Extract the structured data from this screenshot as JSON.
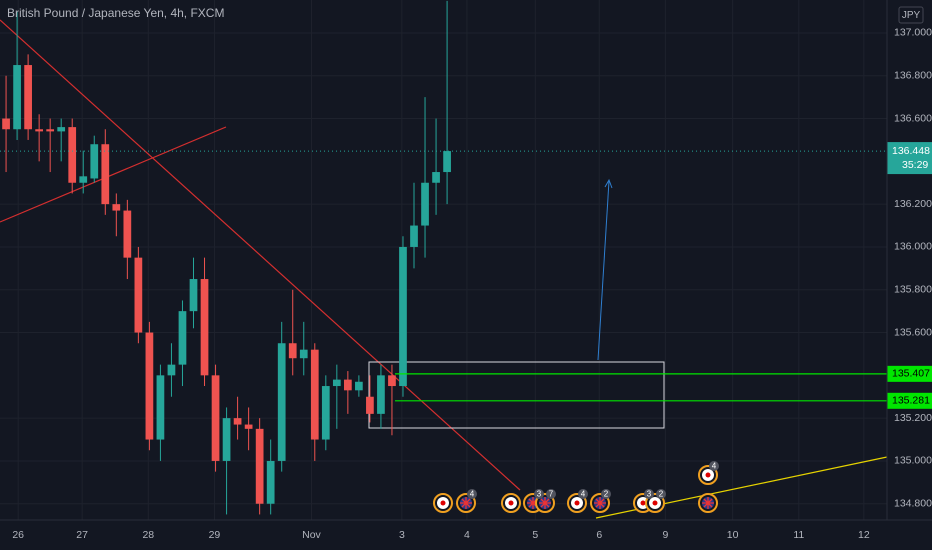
{
  "chart_data": {
    "type": "candlestick",
    "title": "British Pound / Japanese Yen, 4h, FXCM",
    "currency": "JPY",
    "up_color": "#26a69a",
    "down_color": "#ef5350",
    "x": [
      0,
      1,
      2,
      3,
      4,
      5,
      6,
      7,
      8,
      9,
      10,
      11,
      12,
      13,
      14,
      15,
      16,
      17,
      18,
      19,
      20,
      21,
      22,
      23,
      24,
      25,
      26,
      27,
      28,
      29,
      30,
      31,
      32,
      33,
      34,
      35,
      36,
      37,
      38,
      39,
      40
    ],
    "open": [
      136.6,
      136.55,
      136.85,
      136.55,
      136.55,
      136.54,
      136.56,
      136.3,
      136.32,
      136.48,
      136.2,
      136.17,
      135.95,
      135.6,
      135.1,
      135.4,
      135.45,
      135.7,
      135.85,
      135.4,
      135.0,
      135.2,
      135.17,
      135.15,
      134.8,
      135.0,
      135.55,
      135.48,
      135.52,
      135.1,
      135.35,
      135.38,
      135.33,
      135.3,
      135.22,
      135.4,
      135.35,
      136.0,
      136.1,
      136.3,
      136.35
    ],
    "high": [
      136.8,
      137.1,
      136.9,
      136.62,
      136.6,
      136.6,
      136.6,
      136.45,
      136.52,
      136.55,
      136.25,
      136.22,
      136.0,
      135.65,
      135.45,
      135.55,
      135.75,
      135.95,
      135.95,
      135.45,
      135.25,
      135.3,
      135.25,
      135.2,
      135.1,
      135.65,
      135.8,
      135.65,
      135.55,
      135.4,
      135.45,
      135.42,
      135.4,
      135.4,
      135.45,
      135.45,
      136.05,
      136.3,
      136.7,
      136.6,
      137.15
    ],
    "low": [
      136.35,
      136.5,
      136.5,
      136.4,
      136.35,
      136.4,
      136.25,
      136.25,
      136.3,
      136.15,
      136.05,
      135.85,
      135.55,
      135.05,
      135.0,
      135.3,
      135.35,
      135.62,
      135.35,
      134.95,
      134.75,
      135.1,
      135.05,
      134.75,
      134.75,
      134.95,
      135.4,
      135.4,
      135.0,
      135.05,
      135.15,
      135.22,
      135.3,
      135.18,
      135.15,
      135.12,
      135.3,
      135.9,
      135.95,
      136.15,
      136.2
    ],
    "close": [
      136.55,
      136.85,
      136.55,
      136.54,
      136.54,
      136.56,
      136.3,
      136.33,
      136.48,
      136.2,
      136.17,
      135.95,
      135.6,
      135.1,
      135.4,
      135.45,
      135.7,
      135.85,
      135.4,
      135.0,
      135.2,
      135.17,
      135.15,
      134.8,
      135.0,
      135.55,
      135.48,
      135.52,
      135.1,
      135.35,
      135.38,
      135.33,
      135.37,
      135.22,
      135.4,
      135.35,
      136.0,
      136.1,
      136.3,
      136.35,
      136.448
    ],
    "xlim": [
      -0.55,
      79.9
    ],
    "xticks": [
      {
        "value": 1.1,
        "label": "26"
      },
      {
        "value": 6.9,
        "label": "27"
      },
      {
        "value": 12.9,
        "label": "28"
      },
      {
        "value": 18.9,
        "label": "29"
      },
      {
        "value": 27.7,
        "label": "Nov"
      },
      {
        "value": 35.9,
        "label": "3"
      },
      {
        "value": 41.8,
        "label": "4"
      },
      {
        "value": 48,
        "label": "5"
      },
      {
        "value": 53.8,
        "label": "6"
      },
      {
        "value": 59.8,
        "label": "9"
      },
      {
        "value": 65.9,
        "label": "10"
      },
      {
        "value": 71.9,
        "label": "11"
      },
      {
        "value": 77.8,
        "label": "12"
      }
    ],
    "ylim": [
      134.724,
      137.154
    ],
    "yticks": [
      {
        "value": 137,
        "label": "137.000"
      },
      {
        "value": 136.8,
        "label": "136.800"
      },
      {
        "value": 136.6,
        "label": "136.600"
      },
      {
        "value": 136.2,
        "label": "136.200"
      },
      {
        "value": 136,
        "label": "136.000"
      },
      {
        "value": 135.8,
        "label": "135.800"
      },
      {
        "value": 135.6,
        "label": "135.600"
      },
      {
        "value": 135.2,
        "label": "135.200"
      },
      {
        "value": 135,
        "label": "135.000"
      },
      {
        "value": 134.8,
        "label": "134.800"
      }
    ],
    "grid": true,
    "last_price": {
      "value": 136.448,
      "label": "136.448",
      "countdown": "35:29"
    },
    "levels": [
      {
        "value": 135.407,
        "label": "135.407"
      },
      {
        "value": 135.281,
        "label": "135.281"
      }
    ],
    "level_color": "#00e600",
    "event_counts": [
      4,
      3,
      7,
      4,
      2,
      3,
      2,
      4
    ]
  }
}
